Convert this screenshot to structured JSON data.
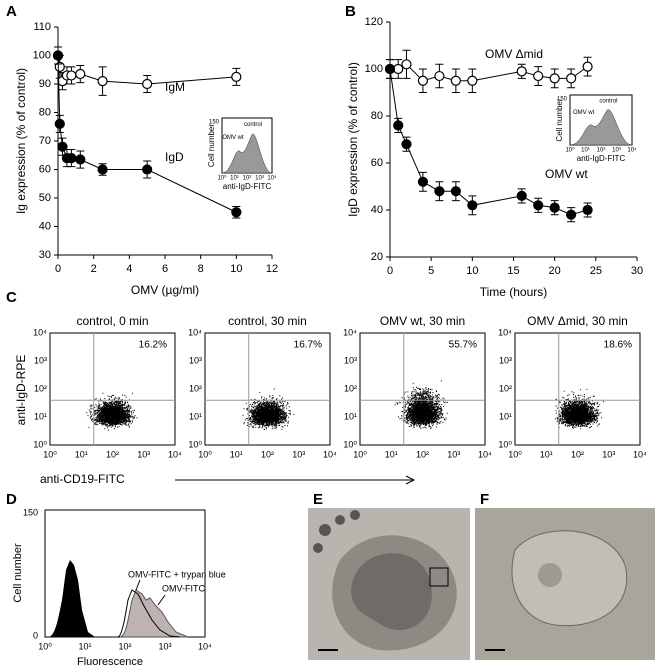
{
  "chart_data": [
    {
      "type": "line",
      "panel": "A",
      "y_label": "Ig expression (% of control)",
      "x_label": "OMV (µg/ml)",
      "x": [
        0,
        0.1,
        0.25,
        0.5,
        0.75,
        1.25,
        2.5,
        5,
        10
      ],
      "series": [
        {
          "name": "IgM",
          "color": "#000000",
          "marker": "open",
          "values": [
            100,
            96,
            91,
            93,
            93,
            93.5,
            91,
            90,
            92.5
          ],
          "errors": [
            3,
            4,
            3,
            3,
            3,
            3,
            5,
            3,
            3
          ]
        },
        {
          "name": "IgD",
          "color": "#000000",
          "marker": "filled",
          "values": [
            100,
            76,
            68,
            64,
            64,
            63.5,
            60,
            60,
            45
          ],
          "errors": [
            3,
            3,
            3,
            3,
            3,
            3,
            2,
            3,
            2
          ]
        }
      ],
      "xlim": [
        0,
        12
      ],
      "xticks": [
        0,
        2,
        4,
        6,
        8,
        10,
        12
      ],
      "ylim": [
        30,
        110
      ],
      "yticks": [
        30,
        40,
        50,
        60,
        70,
        80,
        90,
        100,
        110
      ],
      "inset": {
        "y_label": "Cell number",
        "y_max": 150,
        "labels": [
          "OMV wt",
          "control"
        ],
        "x_label": "anti-IgD-FITC",
        "x_ticks": [
          "10⁰",
          "10¹",
          "10²",
          "10³",
          "10⁴"
        ]
      }
    },
    {
      "type": "line",
      "panel": "B",
      "y_label": "IgD expression (% of control)",
      "x_label": "Time (hours)",
      "x": [
        0,
        1,
        2,
        4,
        6,
        8,
        10,
        16,
        18,
        20,
        22,
        24
      ],
      "series": [
        {
          "name": "OMV Δmid",
          "color": "#000000",
          "marker": "open",
          "values": [
            100,
            100,
            102,
            95,
            97,
            95,
            95,
            99,
            97,
            96,
            96,
            101
          ],
          "errors": [
            4,
            4,
            6,
            5,
            5,
            5,
            5,
            3,
            4,
            4,
            4,
            4
          ]
        },
        {
          "name": "OMV wt",
          "color": "#000000",
          "marker": "filled",
          "values": [
            100,
            76,
            68,
            52,
            48,
            48,
            42,
            46,
            42,
            41,
            38,
            40
          ],
          "errors": [
            4,
            3,
            3,
            4,
            4,
            4,
            4,
            3,
            3,
            3,
            3,
            3
          ]
        }
      ],
      "xlim": [
        0,
        30
      ],
      "xticks": [
        0,
        5,
        10,
        15,
        20,
        25,
        30
      ],
      "ylim": [
        20,
        120
      ],
      "yticks": [
        20,
        40,
        60,
        80,
        100,
        120
      ],
      "inset": {
        "y_label": "Cell number",
        "y_max": 150,
        "labels": [
          "OMV wt",
          "control"
        ],
        "x_label": "anti-IgD-FITC",
        "x_ticks": [
          "10⁰",
          "10¹",
          "10²",
          "10³",
          "10⁴"
        ]
      }
    }
  ],
  "panel_c": {
    "panel": "C",
    "y_label": "anti-IgD-RPE",
    "x_label": "anti-CD19-FITC",
    "ticks": [
      "10⁰",
      "10¹",
      "10²",
      "10³",
      "10⁴"
    ],
    "plots": [
      {
        "title": "control, 0 min",
        "percent": "16.2%"
      },
      {
        "title": "control, 30 min",
        "percent": "16.7%"
      },
      {
        "title": "OMV wt, 30 min",
        "percent": "55.7%"
      },
      {
        "title": "OMV Δmid, 30 min",
        "percent": "18.6%"
      }
    ]
  },
  "panel_d": {
    "panel": "D",
    "y_label": "Cell number",
    "y_max": 150,
    "y_min": 0,
    "x_label": "Fluorescence",
    "ticks": [
      "10⁰",
      "10¹",
      "10²",
      "10³",
      "10⁴"
    ],
    "labels": [
      "OMV-FITC + trypan blue",
      "OMV-FITC"
    ]
  },
  "panel_e": {
    "panel": "E"
  },
  "panel_f": {
    "panel": "F"
  }
}
